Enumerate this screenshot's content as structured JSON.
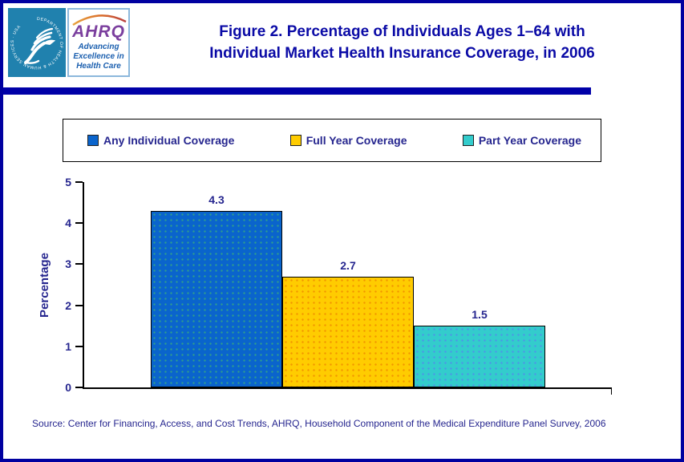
{
  "header": {
    "title_line1": "Figure 2. Percentage of Individuals Ages 1–64 with",
    "title_line2": "Individual Market Health Insurance Coverage, in 2006"
  },
  "logo": {
    "hhs_seal_text": "DEPARTMENT OF HEALTH & HUMAN SERVICES · USA",
    "ahrq_acronym": "AHRQ",
    "tagline_line1": "Advancing",
    "tagline_line2": "Excellence in",
    "tagline_line3": "Health Care"
  },
  "legend": {
    "items": [
      {
        "label": "Any Individual Coverage",
        "color": "#0A64CC"
      },
      {
        "label": "Full Year Coverage",
        "color": "#FFCC00"
      },
      {
        "label": "Part Year Coverage",
        "color": "#33CCCC"
      }
    ]
  },
  "chart_data": {
    "type": "bar",
    "title": "Figure 2. Percentage of Individuals Ages 1–64 with Individual Market Health Insurance Coverage, in 2006",
    "categories": [
      "Any Individual Coverage",
      "Full Year Coverage",
      "Part Year Coverage"
    ],
    "values": [
      4.3,
      2.7,
      1.5
    ],
    "value_labels": [
      "4.3",
      "2.7",
      "1.5"
    ],
    "bar_colors": [
      "#0A64CC",
      "#FFCC00",
      "#33CCCC"
    ],
    "bar_dot_colors": [
      "#2E9E8E",
      "#F29500",
      "#4D94E8"
    ],
    "xlabel": "",
    "ylabel": "Percentage",
    "ylim": [
      0,
      5
    ],
    "yticks": [
      0,
      1,
      2,
      3,
      4,
      5
    ],
    "grid": false,
    "legend_position": "top"
  },
  "source": {
    "text": "Source: Center for Financing, Access, and Cost Trends, AHRQ, Household Component of the Medical Expenditure Panel Survey, 2006"
  },
  "colors": {
    "frame_border": "#0000A0",
    "title_text": "#0A0AA6",
    "divider_bar": "#0000A8",
    "label_text": "#26268F",
    "axis_line": "#000000",
    "hhs_panel_bg": "#2081AE",
    "ahrq_purple": "#7B3F9E",
    "tagline_blue": "#1B5FAF"
  }
}
